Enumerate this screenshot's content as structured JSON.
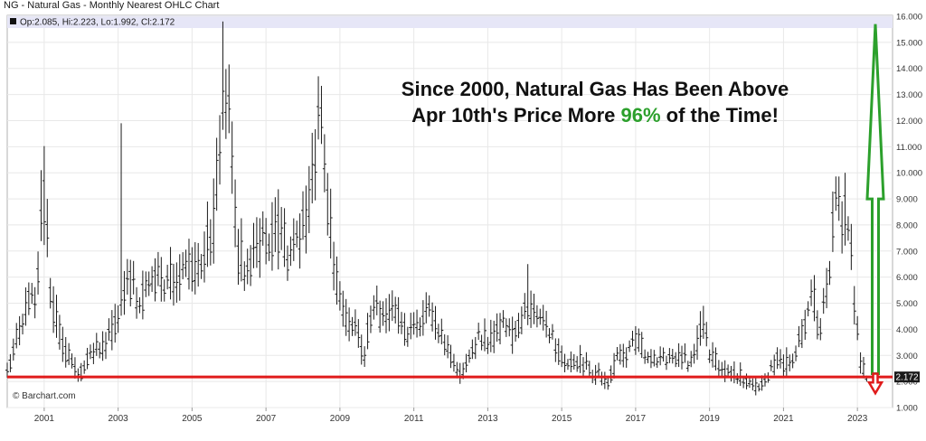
{
  "header": {
    "title": "NG - Natural Gas - Monthly Nearest OHLC Chart",
    "ohlc_readout": "Op:2.085, Hi:2.223, Lo:1.992, Cl:2.172",
    "watermark": "© Barchart.com"
  },
  "annotation": {
    "line1": "Since 2000, Natural Gas Has Been Above",
    "line2_pre": "Apr 10th's Price More ",
    "line2_pct": "96%",
    "line2_post": " of the Time!",
    "pct_color": "#2ca02c"
  },
  "colors": {
    "bars": "#1a1a1a",
    "red_line": "#e01b1b",
    "green_arrow": "#2ca02c",
    "red_arrow": "#e01b1b",
    "header_band": "#e6e6f7",
    "price_badge": "#1a1a1a"
  },
  "chart_data": {
    "type": "ohlc",
    "title": "NG - Natural Gas - Monthly Nearest OHLC Chart",
    "xlim": [
      2000.0,
      2023.95
    ],
    "ylim": [
      1.0,
      16.0
    ],
    "x_ticks": [
      "2001",
      "2003",
      "2005",
      "2007",
      "2009",
      "2011",
      "2013",
      "2015",
      "2017",
      "2019",
      "2021",
      "2023"
    ],
    "y_ticks": [
      "1.000",
      "2.000",
      "3.000",
      "4.000",
      "5.000",
      "6.000",
      "7.000",
      "8.000",
      "9.000",
      "10.000",
      "11.000",
      "12.000",
      "13.000",
      "14.000",
      "15.000",
      "16.000"
    ],
    "last_price": "2.172",
    "last_bar": {
      "open": 2.085,
      "high": 2.223,
      "low": 1.992,
      "close": 2.172
    },
    "reference_line": 2.172,
    "close_path": [
      [
        2000.0,
        2.4
      ],
      [
        2000.4,
        4.4
      ],
      [
        2000.8,
        5.6
      ],
      [
        2000.95,
        9.8
      ],
      [
        2001.2,
        5.0
      ],
      [
        2001.5,
        3.3
      ],
      [
        2001.8,
        2.6
      ],
      [
        2002.0,
        2.3
      ],
      [
        2002.3,
        3.2
      ],
      [
        2002.6,
        3.3
      ],
      [
        2002.9,
        4.0
      ],
      [
        2003.2,
        5.5
      ],
      [
        2003.4,
        5.8
      ],
      [
        2003.6,
        4.9
      ],
      [
        2003.9,
        6.1
      ],
      [
        2004.2,
        5.6
      ],
      [
        2004.5,
        6.0
      ],
      [
        2004.8,
        6.2
      ],
      [
        2005.0,
        6.3
      ],
      [
        2005.3,
        6.8
      ],
      [
        2005.6,
        8.0
      ],
      [
        2005.75,
        11.5
      ],
      [
        2005.95,
        13.5
      ],
      [
        2006.2,
        7.0
      ],
      [
        2006.5,
        6.2
      ],
      [
        2006.8,
        7.2
      ],
      [
        2007.1,
        7.5
      ],
      [
        2007.4,
        7.7
      ],
      [
        2007.7,
        6.5
      ],
      [
        2007.95,
        7.5
      ],
      [
        2008.2,
        9.0
      ],
      [
        2008.45,
        12.8
      ],
      [
        2008.7,
        8.0
      ],
      [
        2008.95,
        5.7
      ],
      [
        2009.2,
        4.2
      ],
      [
        2009.45,
        3.8
      ],
      [
        2009.65,
        3.0
      ],
      [
        2009.9,
        5.0
      ],
      [
        2010.2,
        4.2
      ],
      [
        2010.5,
        4.6
      ],
      [
        2010.8,
        3.9
      ],
      [
        2011.1,
        4.3
      ],
      [
        2011.4,
        4.6
      ],
      [
        2011.7,
        3.8
      ],
      [
        2011.95,
        3.1
      ],
      [
        2012.2,
        2.2
      ],
      [
        2012.5,
        2.9
      ],
      [
        2012.8,
        3.7
      ],
      [
        2013.1,
        3.5
      ],
      [
        2013.4,
        4.2
      ],
      [
        2013.7,
        3.6
      ],
      [
        2013.95,
        4.5
      ],
      [
        2014.2,
        4.6
      ],
      [
        2014.45,
        4.3
      ],
      [
        2014.7,
        3.9
      ],
      [
        2014.95,
        3.0
      ],
      [
        2015.2,
        2.6
      ],
      [
        2015.5,
        2.8
      ],
      [
        2015.8,
        2.3
      ],
      [
        2016.0,
        2.3
      ],
      [
        2016.25,
        1.95
      ],
      [
        2016.5,
        2.9
      ],
      [
        2016.8,
        3.2
      ],
      [
        2017.0,
        3.6
      ],
      [
        2017.3,
        3.1
      ],
      [
        2017.6,
        2.9
      ],
      [
        2017.9,
        2.8
      ],
      [
        2018.2,
        2.8
      ],
      [
        2018.5,
        2.8
      ],
      [
        2018.85,
        4.3
      ],
      [
        2019.0,
        3.0
      ],
      [
        2019.3,
        2.6
      ],
      [
        2019.6,
        2.3
      ],
      [
        2019.9,
        2.2
      ],
      [
        2020.1,
        1.9
      ],
      [
        2020.3,
        1.7
      ],
      [
        2020.6,
        2.3
      ],
      [
        2020.85,
        2.9
      ],
      [
        2021.0,
        2.6
      ],
      [
        2021.3,
        2.9
      ],
      [
        2021.6,
        4.3
      ],
      [
        2021.8,
        5.6
      ],
      [
        2021.95,
        3.8
      ],
      [
        2022.2,
        5.7
      ],
      [
        2022.4,
        8.7
      ],
      [
        2022.6,
        8.2
      ],
      [
        2022.7,
        9.1
      ],
      [
        2022.85,
        6.4
      ],
      [
        2022.95,
        4.5
      ],
      [
        2023.1,
        2.6
      ],
      [
        2023.25,
        2.2
      ]
    ],
    "spikes": [
      [
        2000.95,
        10.1
      ],
      [
        2003.1,
        11.9
      ],
      [
        2005.8,
        15.8
      ],
      [
        2008.45,
        13.7
      ],
      [
        2014.1,
        6.5
      ],
      [
        2018.85,
        4.9
      ],
      [
        2022.7,
        10.0
      ]
    ],
    "green_arrow": {
      "from": 2.3,
      "to": 15.7
    },
    "red_arrow": {
      "from": 2.3,
      "to": 1.55
    }
  }
}
